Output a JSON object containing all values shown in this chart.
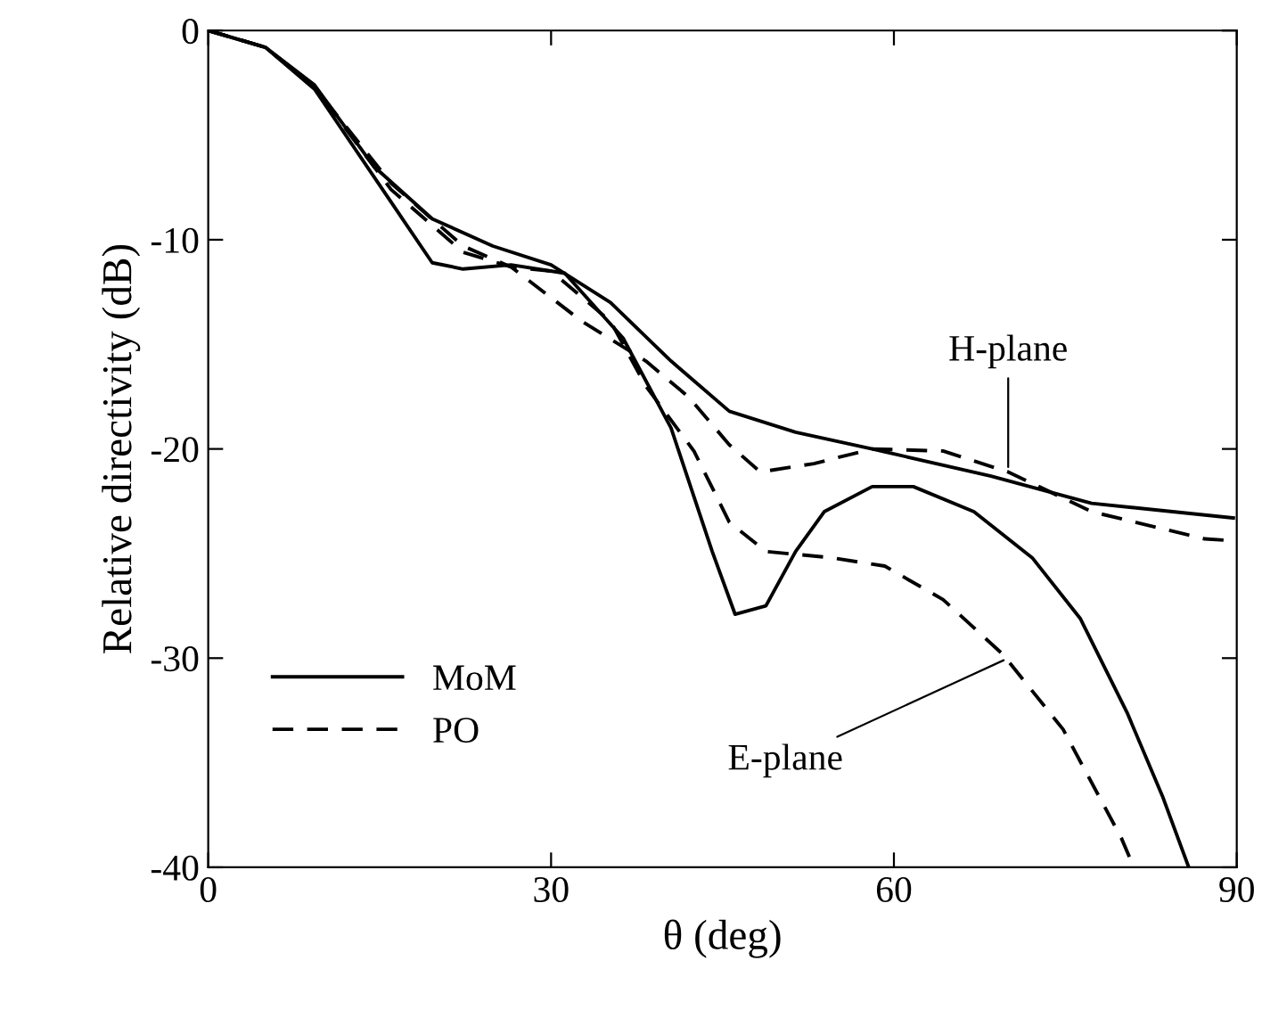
{
  "chart_data": {
    "type": "line",
    "xlabel": "θ (deg)",
    "ylabel": "Relative directivity (dB)",
    "xlim": [
      0,
      90
    ],
    "ylim": [
      -40,
      0
    ],
    "xticks": [
      0,
      30,
      60,
      90
    ],
    "yticks": [
      0,
      -10,
      -20,
      -30,
      -40
    ],
    "grid": false,
    "legend": "bottom left",
    "marker": "none",
    "series": [
      {
        "name": "MoM",
        "color": "#000000",
        "line_style": "solid",
        "x": [
          0,
          5,
          9.3,
          14.5,
          19.6,
          24.9,
          30,
          35.2,
          40.5,
          45.6,
          51.4,
          58.1,
          68.5,
          77.3,
          89.7
        ],
        "values": [
          0,
          -0.8,
          -2.6,
          -6.5,
          -9.0,
          -10.3,
          -11.2,
          -13.0,
          -15.8,
          -18.2,
          -19.2,
          -20.0,
          -21.3,
          -22.6,
          -23.3
        ]
      },
      {
        "name": "PO",
        "color": "#000000",
        "line_style": "dashed",
        "x": [
          0,
          5,
          9.3,
          16,
          22.3,
          26.5,
          32.7,
          38.3,
          42,
          45.6,
          48.3,
          53,
          58.1,
          64.3,
          70,
          77.3,
          87.2,
          90
        ],
        "values": [
          0,
          -0.8,
          -2.7,
          -7.3,
          -10.3,
          -11.3,
          -13.9,
          -15.8,
          -17.5,
          -19.8,
          -21.1,
          -20.7,
          -20.0,
          -20.1,
          -21.1,
          -23.0,
          -24.3,
          -24.4
        ]
      },
      {
        "color": "#000000",
        "line_style": "solid",
        "x": [
          0,
          5,
          9.3,
          16,
          19.6,
          22.3,
          26.5,
          31.2,
          36.3,
          40.5,
          44.1,
          46.1,
          48.8,
          51.4,
          53.9,
          58.1,
          61.7,
          67,
          72.1,
          76.3,
          80.4,
          83.5,
          85.8
        ],
        "values": [
          0,
          -0.8,
          -2.8,
          -8.2,
          -11.1,
          -11.4,
          -11.2,
          -11.6,
          -14.7,
          -19.0,
          -24.9,
          -27.9,
          -27.5,
          -24.9,
          -23.0,
          -21.8,
          -21.8,
          -23.0,
          -25.2,
          -28.1,
          -32.6,
          -36.6,
          -40
        ]
      },
      {
        "color": "#000000",
        "line_style": "dashed",
        "x": [
          0,
          5,
          9.3,
          16,
          22.3,
          26.5,
          30,
          35.2,
          38.3,
          42.5,
          45.6,
          48.8,
          54.5,
          59.2,
          64.3,
          69.5,
          74.8,
          79.9,
          81
        ],
        "values": [
          0,
          -0.8,
          -2.7,
          -7.6,
          -10.6,
          -11.3,
          -11.5,
          -13.9,
          -17.0,
          -20.1,
          -23.5,
          -24.9,
          -25.2,
          -25.6,
          -27.2,
          -29.8,
          -33.4,
          -38.6,
          -40
        ]
      }
    ],
    "annotations": [
      {
        "text": "H-plane",
        "x": 70,
        "y": -21.1
      },
      {
        "text": "E-plane",
        "x": 70,
        "y": -30.0
      }
    ]
  }
}
